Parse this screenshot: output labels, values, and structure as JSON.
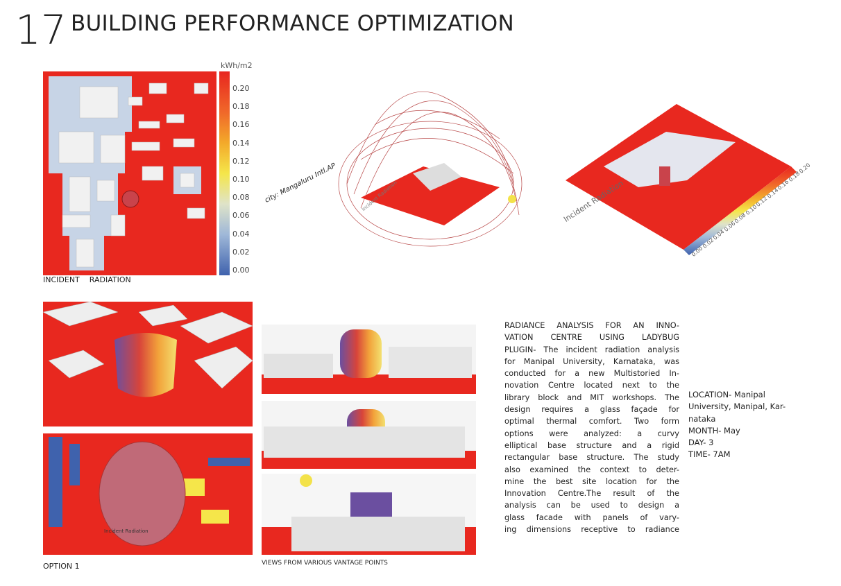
{
  "header": {
    "number": "17",
    "title": "BUILDING PERFORMANCE OPTIMIZATION"
  },
  "legend": {
    "unit": "kWh/m2",
    "labels": [
      "0.20",
      "0.18",
      "0.16",
      "0.14",
      "0.12",
      "0.10",
      "0.08",
      "0.06",
      "0.04",
      "0.02",
      "0.00"
    ]
  },
  "figures": {
    "site_caption": "INCIDENT    RADIATION",
    "city_label": "city: Mangaluru Intl.AP",
    "render_label": "Incident Radiation",
    "option_caption": "OPTION 1",
    "views_caption": "VIEWS FROM VARIOUS VANTAGE POINTS"
  },
  "description": {
    "lines": [
      "RADIANCE ANALYSIS FOR AN INNO-",
      "VATION CENTRE USING LADYBUG",
      "PLUGIN- The incident radiation analysis",
      "for Manipal University, Karnataka, was",
      "conducted for a new Multistoried In-",
      "novation Centre located next to the",
      "library block and MIT workshops. The",
      "design requires a glass façade for",
      "optimal thermal comfort. Two form",
      "options were analyzed: a curvy",
      "elliptical base structure and a rigid",
      "rectangular base structure. The study",
      "also examined the context to deter-",
      "mine the best site location for the",
      "Innovation Centre.The result of the",
      "analysis can be used to design a",
      "glass facade with  panels of vary-",
      "ing dimensions receptive to radiance"
    ]
  },
  "location": {
    "lines": [
      "LOCATION- Manipal",
      "University, Manipal, Kar-",
      "nataka",
      "MONTH- May",
      "DAY- 3",
      "TIME- 7AM"
    ]
  }
}
